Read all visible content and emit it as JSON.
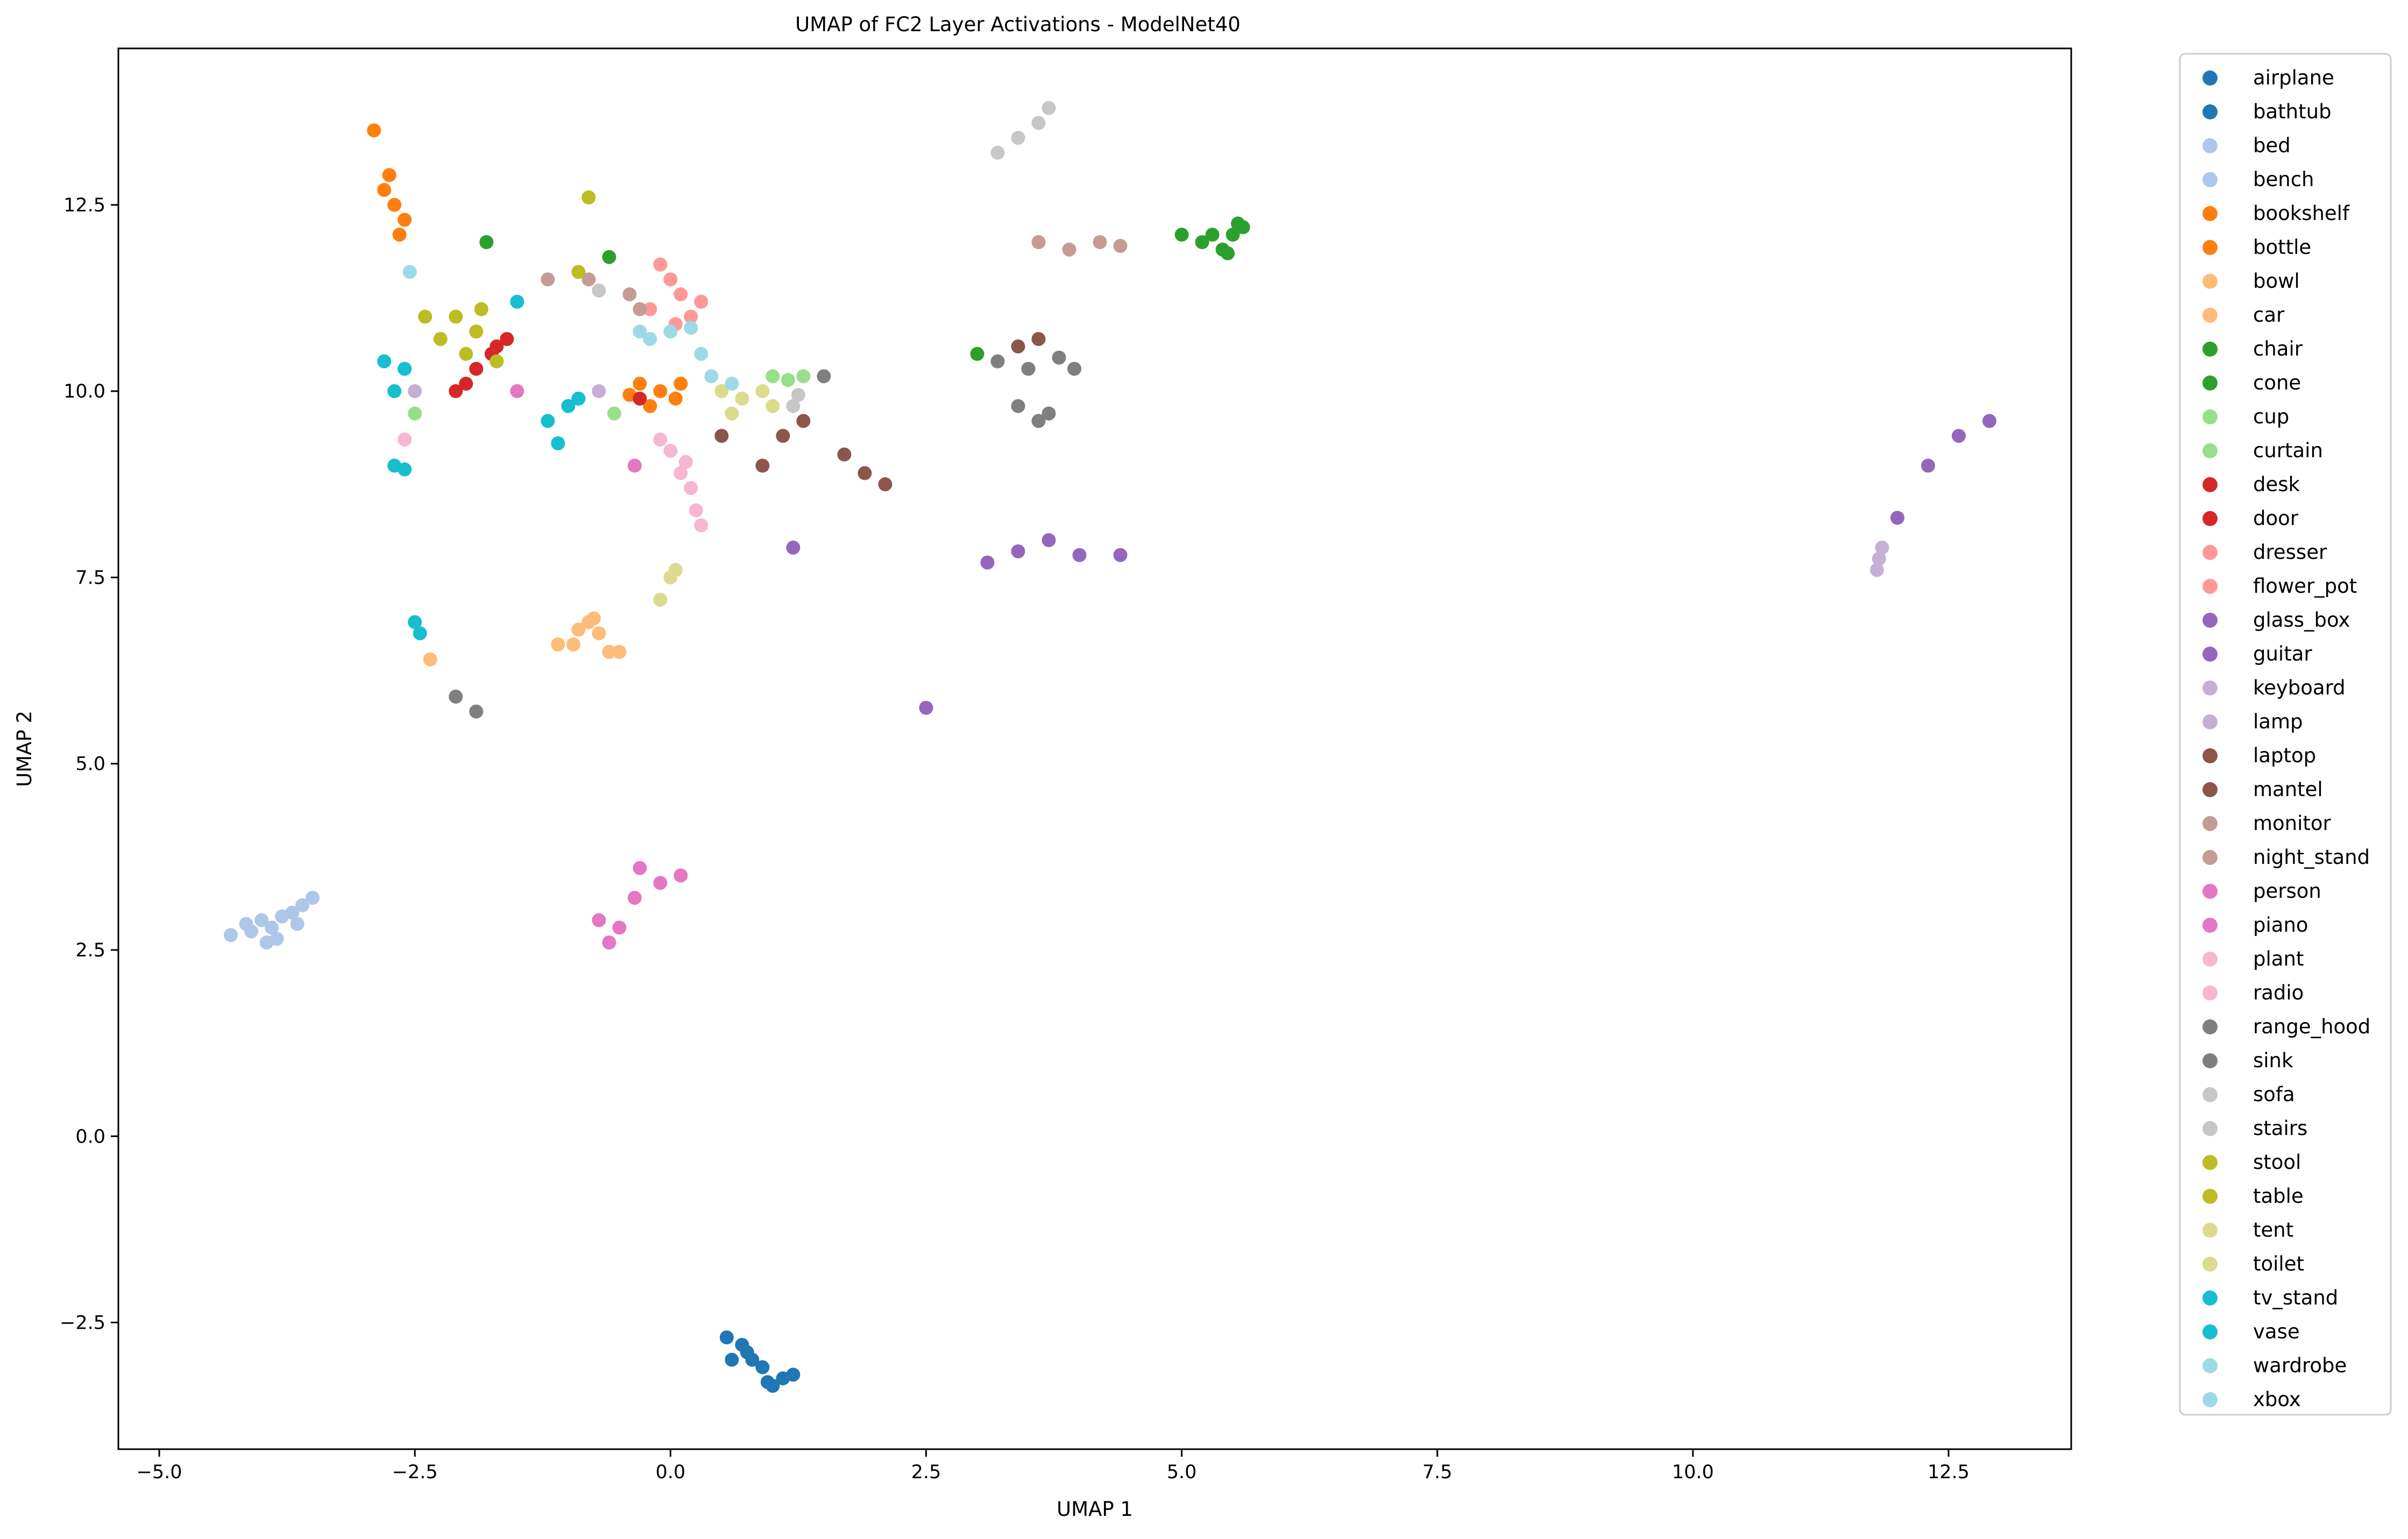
{
  "chart_data": {
    "type": "scatter",
    "title": "UMAP of FC2 Layer Activations - ModelNet40",
    "xlabel": "UMAP 1",
    "ylabel": "UMAP 2",
    "xlim": [
      -5.4,
      13.7
    ],
    "ylim": [
      -4.2,
      14.6
    ],
    "xticks": [
      -5.0,
      -2.5,
      0.0,
      2.5,
      5.0,
      7.5,
      10.0,
      12.5
    ],
    "xtick_labels": [
      "−5.0",
      "−2.5",
      "0.0",
      "2.5",
      "5.0",
      "7.5",
      "10.0",
      "12.5"
    ],
    "yticks": [
      -2.5,
      0.0,
      2.5,
      5.0,
      7.5,
      10.0,
      12.5
    ],
    "ytick_labels": [
      "−2.5",
      "0.0",
      "2.5",
      "5.0",
      "7.5",
      "10.0",
      "12.5"
    ],
    "grid": false,
    "legend_position": "outside-right",
    "series": [
      {
        "name": "airplane",
        "color": "#1f77b4",
        "points": [
          [
            0.55,
            -2.7
          ],
          [
            0.7,
            -2.8
          ],
          [
            0.6,
            -3.0
          ],
          [
            0.8,
            -3.0
          ],
          [
            0.9,
            -3.1
          ]
        ]
      },
      {
        "name": "bathtub",
        "color": "#1f77b4",
        "points": [
          [
            0.95,
            -3.3
          ],
          [
            1.1,
            -3.25
          ],
          [
            1.2,
            -3.2
          ],
          [
            1.0,
            -3.35
          ],
          [
            0.75,
            -2.9
          ]
        ]
      },
      {
        "name": "bed",
        "color": "#aec7e8",
        "points": [
          [
            -4.3,
            2.7
          ],
          [
            -4.1,
            2.75
          ],
          [
            -4.0,
            2.9
          ],
          [
            -3.9,
            2.8
          ],
          [
            -3.8,
            2.95
          ],
          [
            -3.7,
            3.0
          ]
        ]
      },
      {
        "name": "bench",
        "color": "#aec7e8",
        "points": [
          [
            -3.6,
            3.1
          ],
          [
            -3.5,
            3.2
          ],
          [
            -3.85,
            2.65
          ],
          [
            -3.95,
            2.6
          ],
          [
            -4.15,
            2.85
          ],
          [
            -3.65,
            2.85
          ]
        ]
      },
      {
        "name": "bookshelf",
        "color": "#ff7f0e",
        "points": [
          [
            -2.9,
            13.5
          ],
          [
            -2.75,
            12.9
          ],
          [
            -2.7,
            12.5
          ],
          [
            -2.6,
            12.3
          ],
          [
            -2.8,
            12.7
          ],
          [
            -2.65,
            12.1
          ]
        ]
      },
      {
        "name": "bottle",
        "color": "#ff7f0e",
        "points": [
          [
            -0.3,
            10.1
          ],
          [
            -0.1,
            10.0
          ],
          [
            0.05,
            9.9
          ],
          [
            -0.2,
            9.8
          ],
          [
            0.1,
            10.1
          ],
          [
            -0.4,
            9.95
          ]
        ]
      },
      {
        "name": "bowl",
        "color": "#ffbb78",
        "points": [
          [
            -1.1,
            6.6
          ],
          [
            -0.9,
            6.8
          ],
          [
            -0.8,
            6.9
          ],
          [
            -0.6,
            6.5
          ],
          [
            -0.7,
            6.75
          ]
        ]
      },
      {
        "name": "car",
        "color": "#ffbb78",
        "points": [
          [
            -0.95,
            6.6
          ],
          [
            -0.75,
            6.95
          ],
          [
            -2.35,
            6.4
          ],
          [
            -0.5,
            6.5
          ]
        ]
      },
      {
        "name": "chair",
        "color": "#2ca02c",
        "points": [
          [
            5.0,
            12.1
          ],
          [
            5.2,
            12.0
          ],
          [
            5.4,
            11.9
          ],
          [
            5.5,
            12.1
          ],
          [
            5.6,
            12.2
          ]
        ]
      },
      {
        "name": "cone",
        "color": "#2ca02c",
        "points": [
          [
            5.3,
            12.1
          ],
          [
            5.45,
            11.85
          ],
          [
            5.55,
            12.25
          ],
          [
            -1.8,
            12.0
          ],
          [
            3.0,
            10.5
          ],
          [
            -0.6,
            11.8
          ]
        ]
      },
      {
        "name": "cup",
        "color": "#98df8a",
        "points": [
          [
            1.0,
            10.2
          ],
          [
            1.3,
            10.2
          ],
          [
            -2.5,
            9.7
          ]
        ]
      },
      {
        "name": "curtain",
        "color": "#98df8a",
        "points": [
          [
            1.15,
            10.15
          ],
          [
            -0.55,
            9.7
          ]
        ]
      },
      {
        "name": "desk",
        "color": "#d62728",
        "points": [
          [
            -2.0,
            10.1
          ],
          [
            -2.1,
            10.0
          ],
          [
            -1.7,
            10.6
          ],
          [
            -1.6,
            10.7
          ]
        ]
      },
      {
        "name": "door",
        "color": "#d62728",
        "points": [
          [
            -1.9,
            10.3
          ],
          [
            -1.75,
            10.5
          ],
          [
            -0.3,
            9.9
          ]
        ]
      },
      {
        "name": "dresser",
        "color": "#ff9896",
        "points": [
          [
            0.0,
            11.5
          ],
          [
            0.1,
            11.3
          ],
          [
            0.2,
            11.0
          ],
          [
            -0.2,
            11.1
          ]
        ]
      },
      {
        "name": "flower_pot",
        "color": "#ff9896",
        "points": [
          [
            -0.1,
            11.7
          ],
          [
            0.3,
            11.2
          ],
          [
            0.05,
            10.9
          ]
        ]
      },
      {
        "name": "glass_box",
        "color": "#9467bd",
        "points": [
          [
            3.1,
            7.7
          ],
          [
            3.4,
            7.85
          ],
          [
            3.7,
            8.0
          ],
          [
            4.0,
            7.8
          ],
          [
            4.4,
            7.8
          ]
        ]
      },
      {
        "name": "guitar",
        "color": "#9467bd",
        "points": [
          [
            12.0,
            8.3
          ],
          [
            12.3,
            9.0
          ],
          [
            12.6,
            9.4
          ],
          [
            12.9,
            9.6
          ],
          [
            1.2,
            7.9
          ],
          [
            2.5,
            5.75
          ]
        ]
      },
      {
        "name": "keyboard",
        "color": "#c5b0d5",
        "points": [
          [
            11.8,
            7.6
          ],
          [
            11.85,
            7.9
          ],
          [
            -2.5,
            10.0
          ]
        ]
      },
      {
        "name": "lamp",
        "color": "#c5b0d5",
        "points": [
          [
            11.82,
            7.75
          ],
          [
            -0.7,
            10.0
          ]
        ]
      },
      {
        "name": "laptop",
        "color": "#8c564b",
        "points": [
          [
            0.5,
            9.4
          ],
          [
            0.9,
            9.0
          ],
          [
            1.1,
            9.4
          ],
          [
            1.3,
            9.6
          ]
        ]
      },
      {
        "name": "mantel",
        "color": "#8c564b",
        "points": [
          [
            1.7,
            9.15
          ],
          [
            1.9,
            8.9
          ],
          [
            2.1,
            8.75
          ],
          [
            3.4,
            10.6
          ],
          [
            3.6,
            10.7
          ]
        ]
      },
      {
        "name": "monitor",
        "color": "#c49c94",
        "points": [
          [
            3.6,
            12.0
          ],
          [
            3.9,
            11.9
          ],
          [
            4.2,
            12.0
          ],
          [
            4.4,
            11.95
          ]
        ]
      },
      {
        "name": "night_stand",
        "color": "#c49c94",
        "points": [
          [
            -1.2,
            11.5
          ],
          [
            -0.8,
            11.5
          ],
          [
            -0.4,
            11.3
          ],
          [
            -0.3,
            11.1
          ]
        ]
      },
      {
        "name": "person",
        "color": "#e377c2",
        "points": [
          [
            -0.3,
            3.6
          ],
          [
            -0.1,
            3.4
          ],
          [
            0.1,
            3.5
          ],
          [
            -0.35,
            3.2
          ]
        ]
      },
      {
        "name": "piano",
        "color": "#e377c2",
        "points": [
          [
            -0.7,
            2.9
          ],
          [
            -0.6,
            2.6
          ],
          [
            -0.5,
            2.8
          ],
          [
            -1.5,
            10.0
          ],
          [
            -0.35,
            9.0
          ]
        ]
      },
      {
        "name": "plant",
        "color": "#f7b6d2",
        "points": [
          [
            0.0,
            9.2
          ],
          [
            0.1,
            8.9
          ],
          [
            0.2,
            8.7
          ],
          [
            0.25,
            8.4
          ],
          [
            0.3,
            8.2
          ]
        ]
      },
      {
        "name": "radio",
        "color": "#f7b6d2",
        "points": [
          [
            -0.1,
            9.35
          ],
          [
            0.15,
            9.05
          ],
          [
            -2.6,
            9.35
          ]
        ]
      },
      {
        "name": "range_hood",
        "color": "#7f7f7f",
        "points": [
          [
            3.2,
            10.4
          ],
          [
            3.5,
            10.3
          ],
          [
            3.8,
            10.45
          ],
          [
            3.95,
            10.3
          ]
        ]
      },
      {
        "name": "sink",
        "color": "#7f7f7f",
        "points": [
          [
            3.4,
            9.8
          ],
          [
            3.6,
            9.6
          ],
          [
            3.7,
            9.7
          ],
          [
            -2.1,
            5.9
          ],
          [
            -1.9,
            5.7
          ],
          [
            1.5,
            10.2
          ]
        ]
      },
      {
        "name": "sofa",
        "color": "#c7c7c7",
        "points": [
          [
            3.2,
            13.2
          ],
          [
            3.4,
            13.4
          ],
          [
            3.6,
            13.6
          ],
          [
            3.7,
            13.8
          ]
        ]
      },
      {
        "name": "stairs",
        "color": "#c7c7c7",
        "points": [
          [
            1.2,
            9.8
          ],
          [
            1.25,
            9.95
          ],
          [
            -0.7,
            11.35
          ]
        ]
      },
      {
        "name": "stool",
        "color": "#bcbd22",
        "points": [
          [
            -2.4,
            11.0
          ],
          [
            -2.1,
            11.0
          ],
          [
            -1.9,
            10.8
          ],
          [
            -0.8,
            12.6
          ],
          [
            -0.9,
            11.6
          ]
        ]
      },
      {
        "name": "table",
        "color": "#bcbd22",
        "points": [
          [
            -2.0,
            10.5
          ],
          [
            -1.85,
            11.1
          ],
          [
            -1.7,
            10.4
          ],
          [
            -2.25,
            10.7
          ]
        ]
      },
      {
        "name": "tent",
        "color": "#dbdb8d",
        "points": [
          [
            0.5,
            10.0
          ],
          [
            0.7,
            9.9
          ],
          [
            0.9,
            10.0
          ],
          [
            1.0,
            9.8
          ]
        ]
      },
      {
        "name": "toilet",
        "color": "#dbdb8d",
        "points": [
          [
            -0.1,
            7.2
          ],
          [
            0.0,
            7.5
          ],
          [
            0.05,
            7.6
          ],
          [
            0.6,
            9.7
          ]
        ]
      },
      {
        "name": "tv_stand",
        "color": "#17becf",
        "points": [
          [
            -2.8,
            10.4
          ],
          [
            -2.6,
            10.3
          ],
          [
            -2.7,
            10.0
          ],
          [
            -1.2,
            9.6
          ],
          [
            -1.0,
            9.8
          ],
          [
            -1.1,
            9.3
          ]
        ]
      },
      {
        "name": "vase",
        "color": "#17becf",
        "points": [
          [
            -2.5,
            6.9
          ],
          [
            -2.45,
            6.75
          ],
          [
            -2.7,
            9.0
          ],
          [
            -2.6,
            8.95
          ],
          [
            -0.9,
            9.9
          ],
          [
            -1.5,
            11.2
          ]
        ]
      },
      {
        "name": "wardrobe",
        "color": "#9edae5",
        "points": [
          [
            0.0,
            10.8
          ],
          [
            0.2,
            10.85
          ],
          [
            -0.2,
            10.7
          ],
          [
            -2.55,
            11.6
          ]
        ]
      },
      {
        "name": "xbox",
        "color": "#9edae5",
        "points": [
          [
            0.4,
            10.2
          ],
          [
            0.6,
            10.1
          ],
          [
            -0.3,
            10.8
          ],
          [
            0.3,
            10.5
          ]
        ]
      }
    ]
  }
}
